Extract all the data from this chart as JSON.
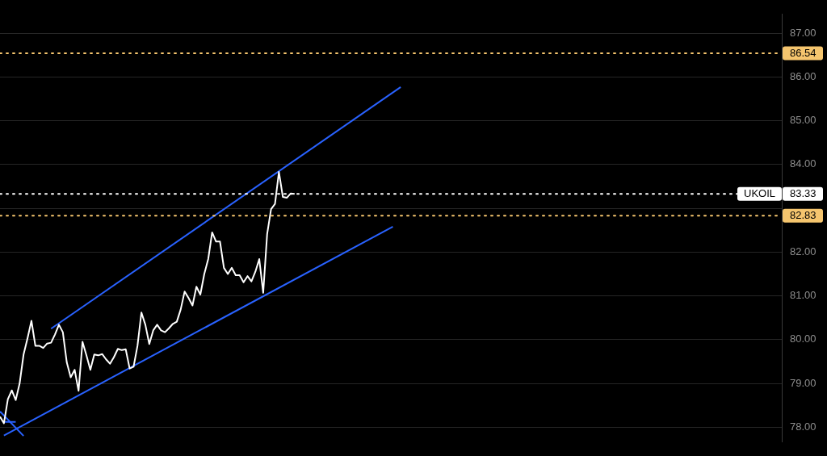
{
  "chart_data": {
    "type": "line",
    "categories": [
      null,
      null,
      null,
      null,
      null,
      null,
      null,
      null,
      null,
      null,
      null,
      null,
      null,
      null,
      null,
      null,
      null,
      null,
      null,
      null,
      null,
      null,
      null,
      null,
      null,
      null,
      null,
      null,
      null,
      null,
      null,
      null,
      null,
      null,
      null,
      null,
      null,
      null,
      null,
      null,
      null,
      null,
      null,
      null,
      null,
      null,
      null,
      null,
      null,
      null,
      null,
      null,
      null,
      null,
      null,
      null,
      null,
      null,
      null,
      null,
      null,
      null,
      null,
      null,
      null,
      null,
      null,
      null,
      null,
      null,
      null,
      null,
      null,
      null,
      null,
      null,
      null,
      null,
      null,
      null,
      null,
      null,
      null,
      null,
      null,
      null,
      null,
      null,
      null,
      null,
      null,
      null,
      null,
      null,
      null,
      null,
      null,
      null,
      null,
      null,
      null,
      null,
      null,
      null,
      null,
      null,
      null,
      null,
      null,
      null,
      null,
      null,
      null,
      null,
      null,
      null,
      null,
      null,
      null,
      null,
      null,
      null,
      null,
      null,
      null,
      null,
      null,
      null,
      null,
      null,
      null,
      null,
      null,
      null,
      null,
      null,
      null,
      null,
      null,
      null,
      null,
      null,
      null,
      null,
      null,
      null,
      null,
      null,
      null,
      null,
      null,
      null,
      null,
      null,
      null,
      null,
      null,
      null,
      null,
      null,
      null,
      null,
      null,
      null,
      null,
      null,
      null,
      null,
      null,
      null,
      null,
      null,
      null,
      null,
      null,
      null,
      null,
      null,
      null,
      null,
      null,
      null,
      null,
      null,
      null,
      null,
      null,
      null,
      null,
      null,
      null,
      null,
      null,
      null,
      null,
      null,
      null,
      null,
      null,
      null
    ],
    "series": [
      {
        "color": "#ffffff",
        "values": [
          78.24,
          78.09,
          78.64,
          78.84,
          78.62,
          79.0,
          79.66,
          80.03,
          80.43,
          79.86,
          79.86,
          79.81,
          79.91,
          79.93,
          80.12,
          80.34,
          80.17,
          79.48,
          79.14,
          79.31,
          78.83,
          79.95,
          79.64,
          79.31,
          79.66,
          79.64,
          79.67,
          79.55,
          79.45,
          79.6,
          79.79,
          79.76,
          79.78,
          79.34,
          79.38,
          79.86,
          80.62,
          80.34,
          79.9,
          80.21,
          80.34,
          80.21,
          80.17,
          80.26,
          80.36,
          80.41,
          80.69,
          81.1,
          80.95,
          80.78,
          81.21,
          81.03,
          81.5,
          81.84,
          82.45,
          82.24,
          82.24,
          81.64,
          81.5,
          81.64,
          81.47,
          81.47,
          81.31,
          81.45,
          81.33,
          81.55,
          81.84,
          81.07,
          82.41,
          82.98,
          83.1,
          83.83,
          83.26,
          83.24,
          83.34,
          83.33,
          null,
          null,
          null,
          null,
          null,
          null,
          null,
          null,
          null,
          null,
          null,
          null,
          null,
          null,
          null,
          null,
          null,
          null,
          null,
          null,
          null,
          null,
          null,
          null,
          null,
          null,
          null,
          null,
          null,
          null,
          null,
          null,
          null,
          null,
          null,
          null,
          null,
          null,
          null,
          null,
          null,
          null,
          null,
          null,
          null,
          null,
          null,
          null,
          null,
          null,
          null,
          null,
          null,
          null,
          null,
          null,
          null,
          null,
          null,
          null,
          null,
          null,
          null,
          null,
          null,
          null,
          null,
          null,
          null,
          null,
          null,
          null,
          null,
          null,
          null,
          null,
          null,
          null,
          null,
          null,
          null,
          null,
          null,
          null,
          null,
          null,
          null,
          null,
          null,
          null,
          null,
          null,
          null,
          null,
          null,
          null,
          null,
          null,
          null,
          null,
          null,
          null,
          null,
          null,
          null,
          null,
          null,
          null,
          null,
          null,
          null,
          null,
          null,
          null,
          null,
          null,
          null,
          null,
          null,
          null,
          null,
          null,
          null,
          null
        ]
      },
      {
        "color": "#2962ff",
        "values": [
          null,
          null,
          null,
          null,
          null,
          null,
          null,
          null,
          null,
          null,
          null,
          null,
          null,
          80.25,
          null,
          null,
          null,
          null,
          null,
          null,
          null,
          null,
          null,
          null,
          null,
          null,
          null,
          null,
          null,
          null,
          null,
          null,
          null,
          null,
          null,
          null,
          null,
          null,
          null,
          null,
          null,
          null,
          null,
          null,
          null,
          null,
          null,
          null,
          null,
          null,
          null,
          null,
          null,
          null,
          null,
          null,
          null,
          null,
          null,
          null,
          null,
          null,
          null,
          null,
          null,
          null,
          null,
          null,
          null,
          null,
          null,
          null,
          null,
          null,
          null,
          null,
          null,
          null,
          null,
          null,
          null,
          null,
          null,
          null,
          null,
          null,
          null,
          null,
          null,
          null,
          null,
          null,
          null,
          null,
          null,
          null,
          null,
          null,
          null,
          null,
          null,
          null,
          85.77,
          null,
          null,
          null,
          null,
          null,
          null,
          null,
          null,
          null,
          null,
          null,
          null,
          null,
          null,
          null,
          null,
          null,
          null,
          null,
          null,
          null,
          null,
          null,
          null,
          null,
          null,
          null,
          null,
          null,
          null,
          null,
          null,
          null,
          null,
          null,
          null,
          null,
          null,
          null,
          null,
          null,
          null,
          null,
          null,
          null,
          null,
          null,
          null,
          null,
          null,
          null,
          null,
          null,
          null,
          null,
          null,
          null,
          null,
          null,
          null,
          null,
          null,
          null,
          null,
          null,
          null,
          null,
          null,
          null,
          null,
          null,
          null,
          null,
          null,
          null,
          null,
          null,
          null,
          null,
          null,
          null,
          null,
          null,
          null,
          null,
          null,
          null,
          null,
          null,
          null,
          null,
          null,
          null,
          null,
          null,
          null,
          null
        ]
      },
      {
        "color": "#2962ff",
        "values": [
          null,
          77.81,
          null,
          null,
          null,
          null,
          null,
          null,
          null,
          null,
          null,
          null,
          null,
          null,
          null,
          null,
          null,
          null,
          null,
          null,
          null,
          null,
          null,
          null,
          null,
          null,
          null,
          null,
          null,
          null,
          null,
          null,
          null,
          null,
          null,
          null,
          null,
          null,
          null,
          null,
          null,
          null,
          null,
          null,
          null,
          null,
          null,
          null,
          null,
          null,
          null,
          null,
          null,
          null,
          null,
          null,
          null,
          null,
          null,
          null,
          null,
          null,
          null,
          null,
          null,
          null,
          null,
          null,
          null,
          null,
          null,
          null,
          null,
          null,
          null,
          null,
          null,
          null,
          null,
          null,
          null,
          null,
          null,
          null,
          null,
          null,
          null,
          null,
          null,
          null,
          null,
          null,
          null,
          null,
          null,
          null,
          null,
          null,
          null,
          null,
          82.58,
          null,
          null,
          null,
          null,
          null,
          null,
          null,
          null,
          null,
          null,
          null,
          null,
          null,
          null,
          null,
          null,
          null,
          null,
          null,
          null,
          null,
          null,
          null,
          null,
          null,
          null,
          null,
          null,
          null,
          null,
          null,
          null,
          null,
          null,
          null,
          null,
          null,
          null,
          null,
          null,
          null,
          null,
          null,
          null,
          null,
          null,
          null,
          null,
          null,
          null,
          null,
          null,
          null,
          null,
          null,
          null,
          null,
          null,
          null,
          null,
          null,
          null,
          null,
          null,
          null,
          null,
          null,
          null,
          null,
          null,
          null,
          null,
          null,
          null,
          null,
          null,
          null,
          null,
          null,
          null,
          null,
          null,
          null,
          null,
          null,
          null,
          null,
          null,
          null,
          null,
          null,
          null,
          null,
          null,
          null,
          null,
          null,
          null,
          null
        ]
      },
      {
        "color": "#2962ff",
        "values": [
          78.36,
          null,
          null,
          null,
          null,
          null,
          77.8,
          null,
          null,
          null,
          null,
          null,
          null,
          null,
          null,
          null,
          null,
          null,
          null,
          null,
          null,
          null,
          null,
          null,
          null,
          null,
          null,
          null,
          null,
          null,
          null,
          null,
          null,
          null,
          null,
          null,
          null,
          null,
          null,
          null,
          null,
          null,
          null,
          null,
          null,
          null,
          null,
          null,
          null,
          null,
          null,
          null,
          null,
          null,
          null,
          null,
          null,
          null,
          null,
          null,
          null,
          null,
          null,
          null,
          null,
          null,
          null,
          null,
          null,
          null,
          null,
          null,
          null,
          null,
          null,
          null,
          null,
          null,
          null,
          null,
          null,
          null,
          null,
          null,
          null,
          null,
          null,
          null,
          null,
          null,
          null,
          null,
          null,
          null,
          null,
          null,
          null,
          null,
          null,
          null,
          null,
          null,
          null,
          null,
          null,
          null,
          null,
          null,
          null,
          null,
          null,
          null,
          null,
          null,
          null,
          null,
          null,
          null,
          null,
          null,
          null,
          null,
          null,
          null,
          null,
          null,
          null,
          null,
          null,
          null,
          null,
          null,
          null,
          null,
          null,
          null,
          null,
          null,
          null,
          null,
          null,
          null,
          null,
          null,
          null,
          null,
          null,
          null,
          null,
          null,
          null,
          null,
          null,
          null,
          null,
          null,
          null,
          null,
          null,
          null,
          null,
          null,
          null,
          null,
          null,
          null,
          null,
          null,
          null,
          null,
          null,
          null,
          null,
          null,
          null,
          null,
          null,
          null,
          null,
          null,
          null,
          null,
          null,
          null,
          null,
          null,
          null,
          null,
          null,
          null,
          null,
          null,
          null,
          null,
          null,
          null,
          null,
          null,
          null,
          null
        ]
      },
      {
        "color": "#2962ff",
        "values": [
          null,
          78.12,
          null,
          null,
          78.12,
          null,
          null,
          null,
          null,
          null,
          null,
          null,
          null,
          null,
          null,
          null,
          null,
          null,
          null,
          null,
          null,
          null,
          null,
          null,
          null,
          null,
          null,
          null,
          null,
          null,
          null,
          null,
          null,
          null,
          null,
          null,
          null,
          null,
          null,
          null,
          null,
          null,
          null,
          null,
          null,
          null,
          null,
          null,
          null,
          null,
          null,
          null,
          null,
          null,
          null,
          null,
          null,
          null,
          null,
          null,
          null,
          null,
          null,
          null,
          null,
          null,
          null,
          null,
          null,
          null,
          null,
          null,
          null,
          null,
          null,
          null,
          null,
          null,
          null,
          null,
          null,
          null,
          null,
          null,
          null,
          null,
          null,
          null,
          null,
          null,
          null,
          null,
          null,
          null,
          null,
          null,
          null,
          null,
          null,
          null,
          null,
          null,
          null,
          null,
          null,
          null,
          null,
          null,
          null,
          null,
          null,
          null,
          null,
          null,
          null,
          null,
          null,
          null,
          null,
          null,
          null,
          null,
          null,
          null,
          null,
          null,
          null,
          null,
          null,
          null,
          null,
          null,
          null,
          null,
          null,
          null,
          null,
          null,
          null,
          null,
          null,
          null,
          null,
          null,
          null,
          null,
          null,
          null,
          null,
          null,
          null,
          null,
          null,
          null,
          null,
          null,
          null,
          null,
          null,
          null,
          null,
          null,
          null,
          null,
          null,
          null,
          null,
          null,
          null,
          null,
          null,
          null,
          null,
          null,
          null,
          null,
          null,
          null,
          null,
          null,
          null,
          null,
          null,
          null,
          null,
          null,
          null,
          null,
          null,
          null,
          null,
          null,
          null,
          null,
          null,
          null,
          null,
          null,
          null,
          null
        ]
      }
    ],
    "ylim": [
      77.67,
      87.43
    ],
    "yticks": [
      {
        "value": 78,
        "label": "78.00"
      },
      {
        "value": 79,
        "label": "79.00"
      },
      {
        "value": 80,
        "label": "80.00"
      },
      {
        "value": 81,
        "label": "81.00"
      },
      {
        "value": 82,
        "label": "82.00"
      },
      {
        "value": 83,
        "label": null
      },
      {
        "value": 84,
        "label": "84.00"
      },
      {
        "value": 85,
        "label": "85.00"
      },
      {
        "value": 86,
        "label": "86.00"
      },
      {
        "value": 87,
        "label": "87.00"
      }
    ],
    "tick_labels": "y",
    "grid": "y",
    "line_style": "solid",
    "ref_lines": [
      {
        "axis": "y",
        "value": 86.54,
        "color": "#f5c56e",
        "line_style": "dotted"
      },
      {
        "axis": "y",
        "value": 83.33,
        "label": "UKOIL",
        "color": "#ffffff",
        "line_style": "dotted"
      },
      {
        "axis": "y",
        "value": 82.83,
        "color": "#f5c56e",
        "line_style": "dotted"
      }
    ],
    "annotations": [
      "86.54",
      "83.33",
      "82.83"
    ]
  }
}
